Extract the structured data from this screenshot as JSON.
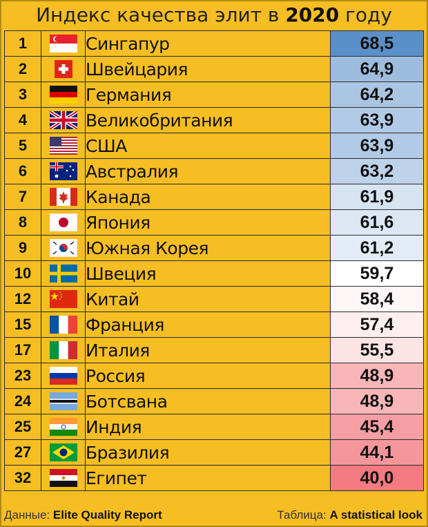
{
  "title": {
    "prefix": "Индекс качества элит в ",
    "year": "2020",
    "suffix": " году"
  },
  "chart_data": {
    "type": "table",
    "title": "Индекс качества элит в 2020 году",
    "rows": [
      {
        "rank": "1",
        "country": "Сингапур",
        "value": "68,5",
        "num": 68.5,
        "flag": "singapore-flag-icon"
      },
      {
        "rank": "2",
        "country": "Швейцария",
        "value": "64,9",
        "num": 64.9,
        "flag": "switzerland-flag-icon"
      },
      {
        "rank": "3",
        "country": "Германия",
        "value": "64,2",
        "num": 64.2,
        "flag": "germany-flag-icon"
      },
      {
        "rank": "4",
        "country": "Великобритания",
        "value": "63,9",
        "num": 63.9,
        "flag": "uk-flag-icon"
      },
      {
        "rank": "5",
        "country": "США",
        "value": "63,9",
        "num": 63.9,
        "flag": "usa-flag-icon"
      },
      {
        "rank": "6",
        "country": "Австралия",
        "value": "63,2",
        "num": 63.2,
        "flag": "australia-flag-icon"
      },
      {
        "rank": "7",
        "country": "Канада",
        "value": "61,9",
        "num": 61.9,
        "flag": "canada-flag-icon"
      },
      {
        "rank": "8",
        "country": "Япония",
        "value": "61,6",
        "num": 61.6,
        "flag": "japan-flag-icon"
      },
      {
        "rank": "9",
        "country": "Южная Корея",
        "value": "61,2",
        "num": 61.2,
        "flag": "south-korea-flag-icon"
      },
      {
        "rank": "10",
        "country": "Швеция",
        "value": "59,7",
        "num": 59.7,
        "flag": "sweden-flag-icon"
      },
      {
        "rank": "12",
        "country": "Китай",
        "value": "58,4",
        "num": 58.4,
        "flag": "china-flag-icon"
      },
      {
        "rank": "15",
        "country": "Франция",
        "value": "57,4",
        "num": 57.4,
        "flag": "france-flag-icon"
      },
      {
        "rank": "17",
        "country": "Италия",
        "value": "55,5",
        "num": 55.5,
        "flag": "italy-flag-icon"
      },
      {
        "rank": "23",
        "country": "Россия",
        "value": "48,9",
        "num": 48.9,
        "flag": "russia-flag-icon"
      },
      {
        "rank": "24",
        "country": "Ботсвана",
        "value": "48,9",
        "num": 48.9,
        "flag": "botswana-flag-icon"
      },
      {
        "rank": "25",
        "country": "Индия",
        "value": "45,4",
        "num": 45.4,
        "flag": "india-flag-icon"
      },
      {
        "rank": "27",
        "country": "Бразилия",
        "value": "44,1",
        "num": 44.1,
        "flag": "brazil-flag-icon"
      },
      {
        "rank": "32",
        "country": "Египет",
        "value": "40,0",
        "num": 40.0,
        "flag": "egypt-flag-icon"
      }
    ],
    "color_scale": {
      "high": "#5B8FC8",
      "mid": "#FFFFFF",
      "low": "#F27A80"
    }
  },
  "footer": {
    "source_label": "Данные:",
    "source_value": "Elite Quality Report",
    "table_label": "Таблица:",
    "table_value": "A statistical look"
  }
}
